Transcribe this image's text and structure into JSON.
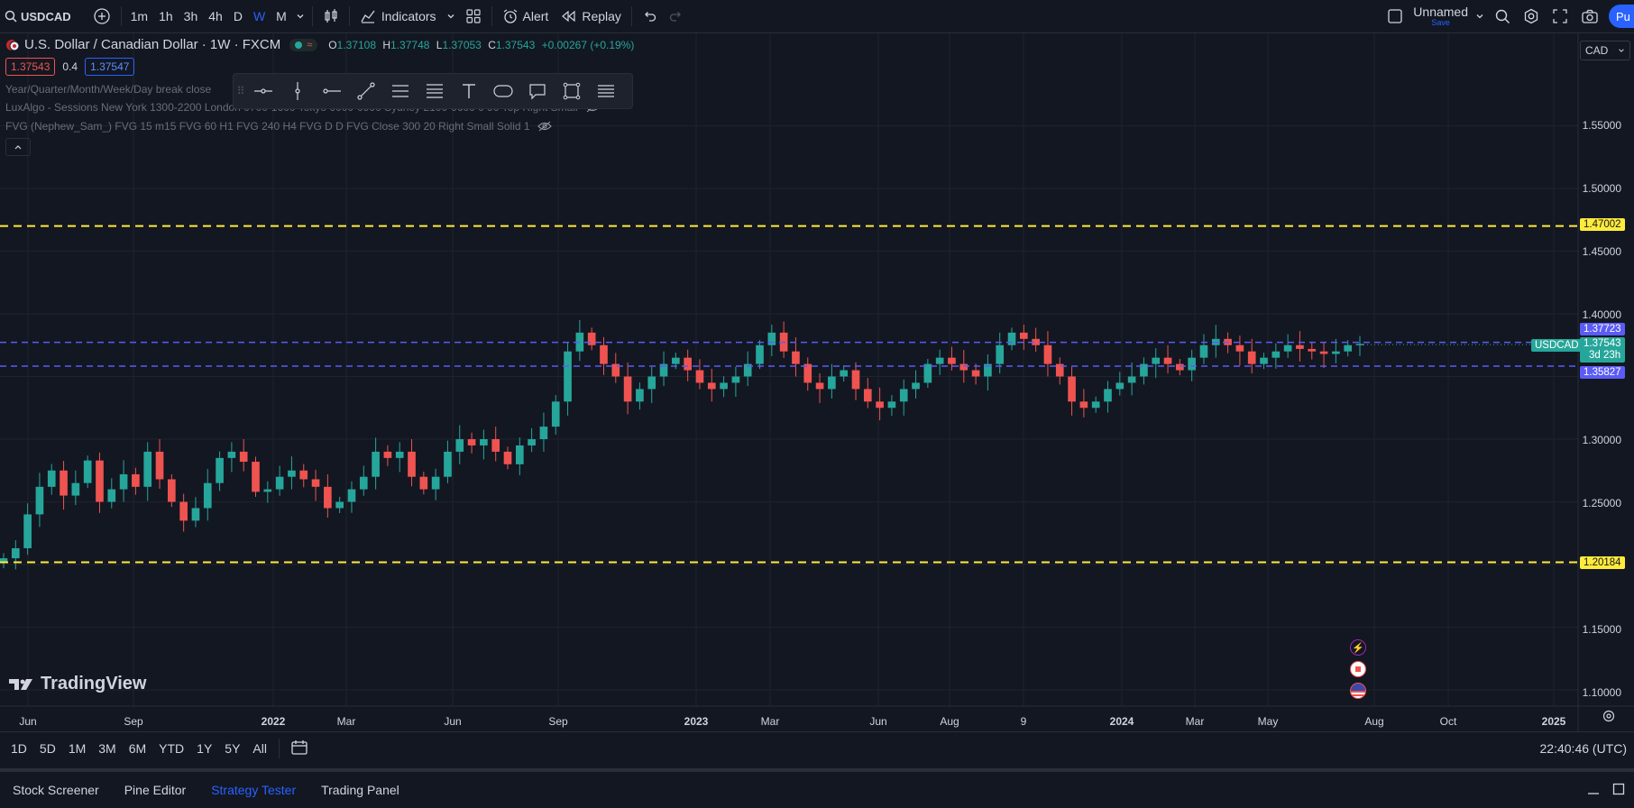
{
  "topbar": {
    "symbol": "USDCAD",
    "timeframes": [
      "1m",
      "1h",
      "3h",
      "4h",
      "D",
      "W",
      "M"
    ],
    "active_timeframe": "W",
    "indicators_label": "Indicators",
    "alert_label": "Alert",
    "replay_label": "Replay",
    "layout_name": "Unnamed",
    "layout_save": "Save",
    "publish_label": "Pu"
  },
  "legend": {
    "title": "U.S. Dollar / Canadian Dollar · 1W · FXCM",
    "open_label": "O",
    "open": "1.37108",
    "high_label": "H",
    "high": "1.37748",
    "low_label": "L",
    "low": "1.37053",
    "close_label": "C",
    "close": "1.37543",
    "change": "+0.00267 (+0.19%)",
    "bid": "1.37543",
    "spread": "0.4",
    "ask": "1.37547",
    "indicator1": "Year/Quarter/Month/Week/Day break close",
    "indicator2": "LuxAlgo - Sessions New York 1300-2200 London 0700-1600 Tokyo 0000-0900 Sydney 2100-0600 0 90 Top Right Small",
    "indicator3": "FVG (Nephew_Sam_) FVG 15 m15 FVG 60 H1 FVG 240 H4 FVG D D FVG Close 300 20 Right Small Solid 1"
  },
  "currency": "CAD",
  "price_axis": [
    "1.55000",
    "1.50000",
    "1.45000",
    "1.40000",
    "1.30000",
    "1.25000",
    "1.15000",
    "1.10000"
  ],
  "price_tags": {
    "upper_yellow": "1.47002",
    "upper_blue": "1.37723",
    "symbol": "USDCAD",
    "last": "1.37543",
    "countdown": "3d 23h",
    "lower_blue": "1.35827",
    "lower_yellow": "1.20184"
  },
  "time_axis": [
    "Jun",
    "Sep",
    "2022",
    "Mar",
    "Jun",
    "Sep",
    "2023",
    "Mar",
    "Jun",
    "Aug",
    "9",
    "2024",
    "Mar",
    "May",
    "Aug",
    "Oct",
    "2025"
  ],
  "watermark": "TradingView",
  "ranges": [
    "1D",
    "5D",
    "1M",
    "3M",
    "6M",
    "YTD",
    "1Y",
    "5Y",
    "All"
  ],
  "clock": "22:40:46 (UTC)",
  "footer_tabs": [
    "Stock Screener",
    "Pine Editor",
    "Strategy Tester",
    "Trading Panel"
  ],
  "colors": {
    "up": "#26a69a",
    "down": "#ef5350",
    "yellow": "#ffeb3b",
    "blue": "#5b5cf6",
    "accent": "#2962ff"
  },
  "chart_data": {
    "type": "candlestick",
    "title": "U.S. Dollar / Canadian Dollar · 1W · FXCM",
    "ylim": [
      1.08,
      1.58
    ],
    "horizontal_lines": [
      1.47002,
      1.37723,
      1.35827,
      1.20184
    ],
    "last_price": 1.37543,
    "x_range": [
      "2021-05",
      "2025-01"
    ],
    "close_series_approx": [
      1.205,
      1.213,
      1.24,
      1.262,
      1.275,
      1.255,
      1.265,
      1.283,
      1.25,
      1.26,
      1.272,
      1.262,
      1.29,
      1.268,
      1.25,
      1.235,
      1.245,
      1.265,
      1.285,
      1.29,
      1.282,
      1.258,
      1.26,
      1.27,
      1.275,
      1.268,
      1.262,
      1.245,
      1.25,
      1.26,
      1.27,
      1.29,
      1.285,
      1.29,
      1.27,
      1.26,
      1.27,
      1.29,
      1.3,
      1.295,
      1.3,
      1.29,
      1.28,
      1.295,
      1.3,
      1.31,
      1.33,
      1.37,
      1.385,
      1.375,
      1.36,
      1.35,
      1.33,
      1.34,
      1.35,
      1.36,
      1.365,
      1.355,
      1.345,
      1.34,
      1.345,
      1.35,
      1.36,
      1.375,
      1.385,
      1.37,
      1.36,
      1.345,
      1.34,
      1.35,
      1.355,
      1.34,
      1.33,
      1.325,
      1.33,
      1.34,
      1.345,
      1.36,
      1.365,
      1.36,
      1.355,
      1.35,
      1.36,
      1.375,
      1.385,
      1.38,
      1.375,
      1.36,
      1.35,
      1.33,
      1.325,
      1.33,
      1.34,
      1.345,
      1.35,
      1.36,
      1.365,
      1.36,
      1.355,
      1.365,
      1.375,
      1.38,
      1.375,
      1.37,
      1.36,
      1.365,
      1.37,
      1.375,
      1.372,
      1.37,
      1.368,
      1.37,
      1.375,
      1.376
    ]
  }
}
